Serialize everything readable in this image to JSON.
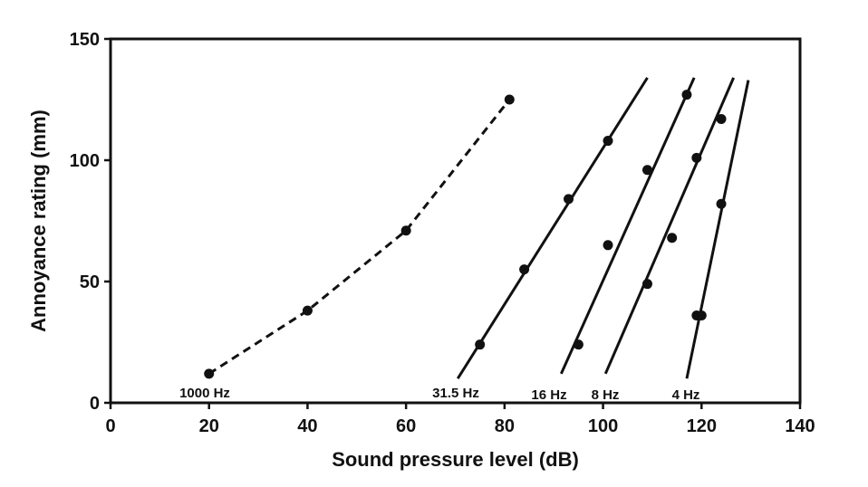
{
  "chart_data": {
    "type": "line",
    "title": "",
    "xlabel": "Sound pressure level (dB)",
    "ylabel": "Annoyance rating (mm)",
    "xlim": [
      0,
      140
    ],
    "ylim": [
      0,
      150
    ],
    "xticks": [
      0,
      20,
      40,
      60,
      80,
      100,
      120,
      140
    ],
    "yticks": [
      0,
      50,
      100,
      150
    ],
    "grid": false,
    "legend": "none",
    "series": [
      {
        "name": "1000 Hz",
        "style": "dashed",
        "points": [
          [
            20,
            12
          ],
          [
            40,
            38
          ],
          [
            60,
            71
          ],
          [
            81,
            125
          ]
        ],
        "fit": null
      },
      {
        "name": "31.5 Hz",
        "style": "solid",
        "points": [
          [
            75,
            24
          ],
          [
            84,
            55
          ],
          [
            93,
            84
          ],
          [
            101,
            108
          ]
        ],
        "fit": [
          [
            70.5,
            10
          ],
          [
            109,
            134
          ]
        ]
      },
      {
        "name": "16 Hz",
        "style": "solid",
        "points": [
          [
            95,
            24
          ],
          [
            101,
            65
          ],
          [
            109,
            96
          ],
          [
            117,
            127
          ]
        ],
        "fit": [
          [
            91.5,
            12
          ],
          [
            118.5,
            134
          ]
        ]
      },
      {
        "name": "8 Hz",
        "style": "solid",
        "points": [
          [
            109,
            49
          ],
          [
            114,
            68
          ],
          [
            119,
            101
          ],
          [
            124,
            117
          ]
        ],
        "fit": [
          [
            100.5,
            12
          ],
          [
            126.5,
            134
          ]
        ]
      },
      {
        "name": "4 Hz",
        "style": "solid",
        "points": [
          [
            119,
            36
          ],
          [
            120,
            36
          ],
          [
            124,
            82
          ]
        ],
        "fit": [
          [
            117,
            10
          ],
          [
            129.5,
            133
          ]
        ]
      }
    ]
  }
}
